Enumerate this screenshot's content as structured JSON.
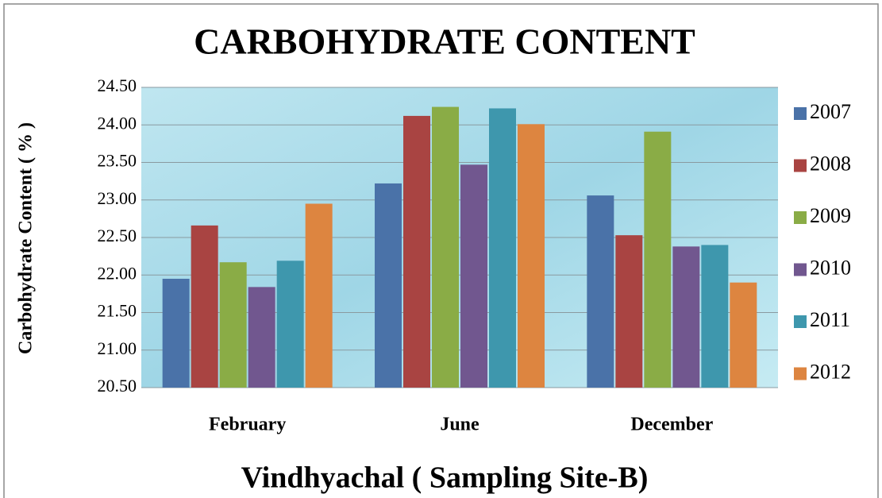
{
  "chart_data": {
    "type": "bar",
    "title": "CARBOHYDRATE CONTENT",
    "x_label": "Vindhyachal ( Sampling Site-B)",
    "y_label": "Carbohydrate Content ( % )",
    "categories": [
      "February",
      "June",
      "December"
    ],
    "series": [
      {
        "name": "2007",
        "color": "#4a72a8",
        "values": [
          21.95,
          23.22,
          23.06
        ]
      },
      {
        "name": "2008",
        "color": "#a94442",
        "values": [
          22.66,
          24.12,
          22.53
        ]
      },
      {
        "name": "2009",
        "color": "#8aac46",
        "values": [
          22.17,
          24.24,
          23.91
        ]
      },
      {
        "name": "2010",
        "color": "#71578f",
        "values": [
          21.84,
          23.47,
          22.38
        ]
      },
      {
        "name": "2011",
        "color": "#3e97ad",
        "values": [
          22.19,
          24.22,
          22.4
        ]
      },
      {
        "name": "2012",
        "color": "#dd8540",
        "values": [
          22.95,
          24.01,
          21.9
        ]
      }
    ],
    "ylim": [
      20.5,
      24.5
    ],
    "yticks": [
      {
        "value": 20.5,
        "label": "20.50"
      },
      {
        "value": 21,
        "label": "21.00"
      },
      {
        "value": 21.5,
        "label": "21.50"
      },
      {
        "value": 22,
        "label": "22.00"
      },
      {
        "value": 22.5,
        "label": "22.50"
      },
      {
        "value": 23,
        "label": "23.00"
      },
      {
        "value": 23.5,
        "label": "23.50"
      },
      {
        "value": 24,
        "label": "24.00"
      },
      {
        "value": 24.5,
        "label": "24.50"
      }
    ],
    "grid": true,
    "legend": "right"
  }
}
